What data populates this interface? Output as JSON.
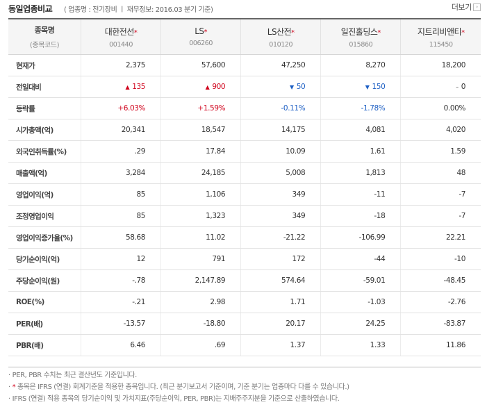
{
  "header": {
    "title": "동일업종비교",
    "subtitle": "( 업종명 : 전기장비 ㅣ 재무정보: 2016.03 분기 기준)",
    "more_label": "더보기"
  },
  "table": {
    "label_header": {
      "name": "종목명",
      "code": "(종목코드)"
    },
    "companies": [
      {
        "name": "대한전선",
        "code": "001440",
        "ifrs": true
      },
      {
        "name": "LS",
        "code": "006260",
        "ifrs": true
      },
      {
        "name": "LS산전",
        "code": "010120",
        "ifrs": true
      },
      {
        "name": "일진홀딩스",
        "code": "015860",
        "ifrs": true
      },
      {
        "name": "지트리비앤티",
        "code": "115450",
        "ifrs": true
      }
    ],
    "rows": [
      {
        "label": "현재가",
        "values": [
          "2,375",
          "57,600",
          "47,250",
          "8,270",
          "18,200"
        ]
      },
      {
        "label": "전일대비",
        "type": "change",
        "values": [
          {
            "dir": "up",
            "value": "135"
          },
          {
            "dir": "up",
            "value": "900"
          },
          {
            "dir": "down",
            "value": "50"
          },
          {
            "dir": "down",
            "value": "150"
          },
          {
            "dir": "flat",
            "value": "0"
          }
        ]
      },
      {
        "label": "등락률",
        "type": "rate",
        "values": [
          {
            "dir": "up",
            "value": "+6.03%"
          },
          {
            "dir": "up",
            "value": "+1.59%"
          },
          {
            "dir": "down",
            "value": "-0.11%"
          },
          {
            "dir": "down",
            "value": "-1.78%"
          },
          {
            "dir": "flat",
            "value": "0.00%"
          }
        ]
      },
      {
        "label": "시가총액(억)",
        "values": [
          "20,341",
          "18,547",
          "14,175",
          "4,081",
          "4,020"
        ]
      },
      {
        "label": "외국인취득률(%)",
        "values": [
          ".29",
          "17.84",
          "10.09",
          "1.61",
          "1.59"
        ]
      },
      {
        "label": "매출액(억)",
        "values": [
          "3,284",
          "24,185",
          "5,008",
          "1,813",
          "48"
        ]
      },
      {
        "label": "영업이익(억)",
        "values": [
          "85",
          "1,106",
          "349",
          "-11",
          "-7"
        ]
      },
      {
        "label": "조정영업이익",
        "values": [
          "85",
          "1,323",
          "349",
          "-18",
          "-7"
        ]
      },
      {
        "label": "영업이익증가율(%)",
        "values": [
          "58.68",
          "11.02",
          "-21.22",
          "-106.99",
          "22.21"
        ]
      },
      {
        "label": "당기순이익(억)",
        "values": [
          "12",
          "791",
          "172",
          "-44",
          "-10"
        ]
      },
      {
        "label": "주당순이익(원)",
        "values": [
          "-.78",
          "2,147.89",
          "574.64",
          "-59.01",
          "-48.45"
        ]
      },
      {
        "label": "ROE(%)",
        "values": [
          "-.21",
          "2.98",
          "1.71",
          "-1.03",
          "-2.76"
        ]
      },
      {
        "label": "PER(배)",
        "values": [
          "-13.57",
          "-18.80",
          "20.17",
          "24.25",
          "-83.87"
        ]
      },
      {
        "label": "PBR(배)",
        "values": [
          "6.46",
          ".69",
          "1.37",
          "1.33",
          "11.86"
        ]
      }
    ]
  },
  "notes": {
    "n1": "PER, PBR 수치는 최근 결산년도 기준입니다.",
    "n2": "종목은 IFRS (연결) 회계기준을 적용한 종목입니다. (최근 분기보고서 기준이며, 기준 분기는 업종마다 다를 수 있습니다.)",
    "n3": "IFRS (연결) 적용 종목의 당기순이익 및 가치지표(주당순이익, PER, PBR)는 지배주주지분을 기준으로 산출하였습니다."
  },
  "glyphs": {
    "bullet": "·",
    "star": "*",
    "up": "▲",
    "down": "▼",
    "flat": "–",
    "more_arrow": "›"
  },
  "colors": {
    "up": "#d0021b",
    "down": "#1d5fc4",
    "header_bg": "#f5f5f5",
    "top_border": "#666666"
  }
}
